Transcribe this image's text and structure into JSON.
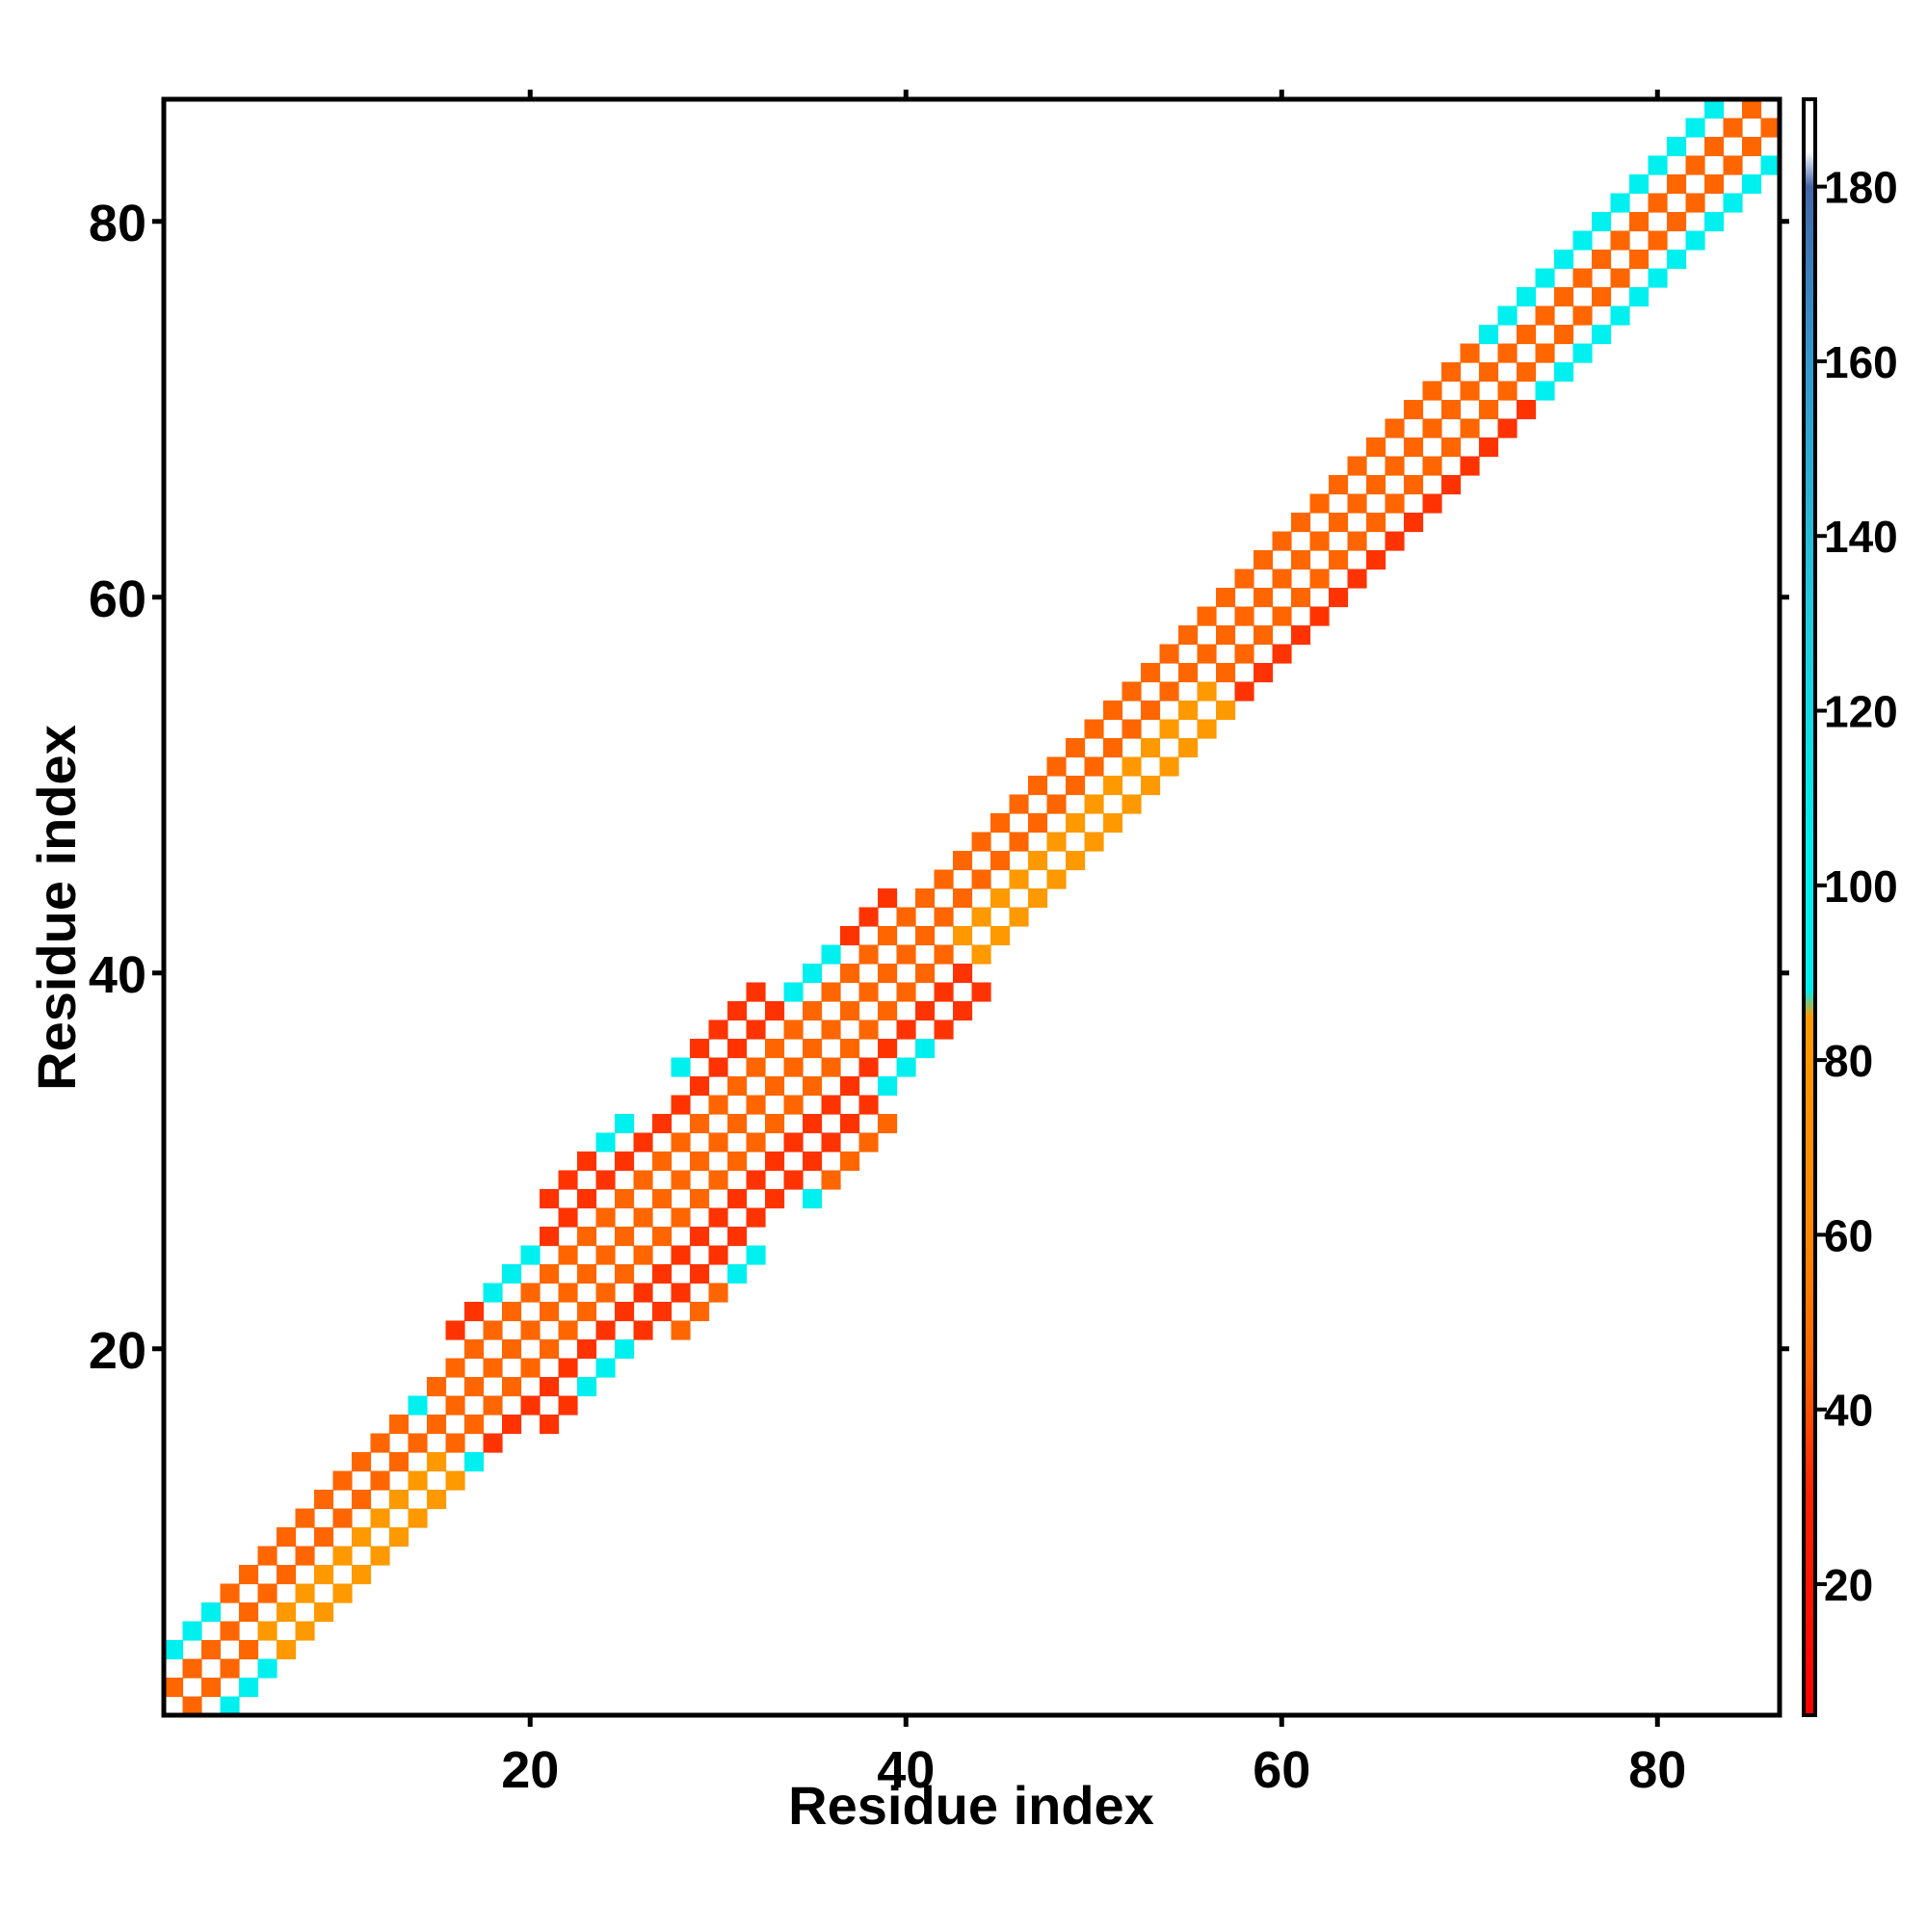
{
  "chart_data": {
    "type": "heatmap",
    "title": "",
    "xlabel": "Residue index",
    "ylabel": "Residue index",
    "xlim": [
      1,
      86
    ],
    "ylim": [
      1,
      86
    ],
    "x_ticks": [
      20,
      40,
      60,
      80
    ],
    "y_ticks": [
      20,
      40,
      60,
      80
    ],
    "x_tick_labels": [
      "20",
      "40",
      "60",
      "80"
    ],
    "y_tick_labels": [
      "20",
      "40",
      "60",
      "80"
    ],
    "grid": false,
    "legend": "none",
    "colorbar": {
      "range": [
        5,
        190
      ],
      "ticks": [
        20,
        40,
        60,
        80,
        100,
        120,
        140,
        160,
        180
      ],
      "tick_labels": [
        "20",
        "40",
        "60",
        "80",
        "100",
        "120",
        "140",
        "160",
        "180"
      ],
      "position": "right",
      "stops": [
        {
          "value": 5,
          "color": "#ff0000"
        },
        {
          "value": 30,
          "color": "#ff2200"
        },
        {
          "value": 45,
          "color": "#ff6600"
        },
        {
          "value": 60,
          "color": "#ff8800"
        },
        {
          "value": 85,
          "color": "#ff9900"
        },
        {
          "value": 88,
          "color": "#00eeee"
        },
        {
          "value": 105,
          "color": "#00eeee"
        },
        {
          "value": 130,
          "color": "#22ccdd"
        },
        {
          "value": 160,
          "color": "#3399cc"
        },
        {
          "value": 180,
          "color": "#4466aa"
        },
        {
          "value": 184,
          "color": "#ffffff"
        },
        {
          "value": 190,
          "color": "#ffffff"
        }
      ]
    },
    "value_palette": {
      "low": "#ff0000",
      "mid_low": "#ff3300",
      "mid": "#ff6600",
      "mid_high": "#ff9900",
      "high_cyan": "#00f0f0",
      "high_teal": "#22ccdd"
    },
    "band": {
      "note": "Symmetric contact band around the diagonal; checkerboard of values with zero (blank) diagonal",
      "half_width_by_residue": [
        {
          "residue": 1,
          "half_width": 3
        },
        {
          "residue": 15,
          "half_width": 3
        },
        {
          "residue": 22,
          "half_width": 5
        },
        {
          "residue": 30,
          "half_width": 7
        },
        {
          "residue": 38,
          "half_width": 5
        },
        {
          "residue": 44,
          "half_width": 3
        },
        {
          "residue": 70,
          "half_width": 3
        },
        {
          "residue": 86,
          "half_width": 3
        }
      ],
      "cyan_regions": [
        [
          1,
          5
        ],
        [
          15,
          41
        ],
        [
          72,
          86
        ]
      ],
      "orange_regions": [
        [
          5,
          15
        ],
        [
          42,
          56
        ]
      ]
    }
  }
}
